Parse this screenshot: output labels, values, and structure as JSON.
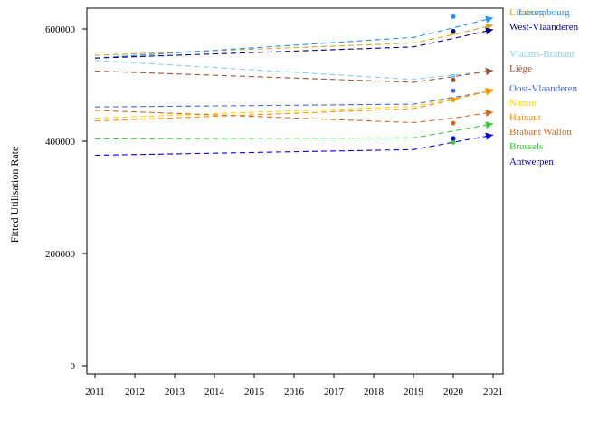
{
  "chart_data": {
    "type": "line",
    "title": "",
    "xlabel": "",
    "ylabel": "Fitted Utilisation Rate",
    "xlim": [
      2011,
      2021
    ],
    "ylim": [
      0,
      640000
    ],
    "x_ticks": [
      2011,
      2012,
      2013,
      2014,
      2015,
      2016,
      2017,
      2018,
      2019,
      2020,
      2021
    ],
    "y_ticks": [
      0,
      200000,
      400000,
      600000
    ],
    "y_tick_labels": [
      "0",
      "200000",
      "400000",
      "600000"
    ],
    "grid": false,
    "legend": "right-side labels",
    "x_years": [
      2011,
      2019,
      2020,
      2021
    ],
    "series": [
      {
        "name": "Limburg",
        "color": "#daa520",
        "values": [
          553000,
          575000,
          590000,
          607000
        ],
        "obs2020": 593000
      },
      {
        "name": "Luxembourg",
        "color": "#1e90ff",
        "values": [
          548000,
          585000,
          602000,
          620000
        ],
        "obs2020": 622000
      },
      {
        "name": "West-Vlaanderen",
        "color": "#00008b",
        "values": [
          548000,
          568000,
          583000,
          599000
        ],
        "obs2020": 596000
      },
      {
        "name": "Vlaams-Brabant",
        "color": "#87ceeb",
        "values": [
          544000,
          510000,
          518000,
          526000
        ],
        "obs2020": 516000
      },
      {
        "name": "Liège",
        "color": "#a0522d",
        "values": [
          525000,
          505000,
          515000,
          526000
        ],
        "obs2020": 509000
      },
      {
        "name": "Oost-Vlaanderen",
        "color": "#4169e1",
        "values": [
          461000,
          466000,
          478000,
          490000
        ],
        "obs2020": 490000
      },
      {
        "name": "Namur",
        "color": "#ffd700",
        "values": [
          441000,
          462000,
          476000,
          490000
        ],
        "obs2020": 473000
      },
      {
        "name": "Hainaut",
        "color": "#ff8c00",
        "values": [
          436000,
          458000,
          474000,
          492000
        ],
        "obs2020": 474000
      },
      {
        "name": "Brabant Wallon",
        "color": "#d2691e",
        "values": [
          455000,
          433000,
          441000,
          452000
        ],
        "obs2020": 432000
      },
      {
        "name": "Brussels",
        "color": "#32cd32",
        "values": [
          404000,
          406000,
          418000,
          431000
        ],
        "obs2020": 398000
      },
      {
        "name": "Antwerpen",
        "color": "#0000ee",
        "values": [
          375000,
          385000,
          398000,
          411000
        ],
        "obs2020": 405000
      }
    ]
  }
}
